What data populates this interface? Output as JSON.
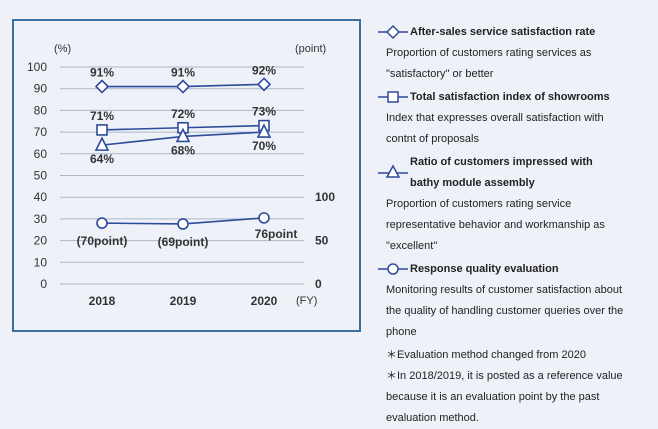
{
  "chart_data": {
    "type": "line",
    "x": [
      "2018",
      "2019",
      "2020"
    ],
    "x_unit": "(FY)",
    "left_axis_unit": "(%)",
    "right_axis_unit": "(point)",
    "yticks_left": [
      "100",
      "90",
      "80",
      "70",
      "60",
      "50",
      "40",
      "30",
      "20",
      "10",
      "0"
    ],
    "yticks_right": [
      "100",
      "50",
      "0"
    ],
    "ylim": [
      0,
      100
    ],
    "grid": true,
    "series": [
      {
        "name": "After-sales service satisfaction rate",
        "marker": "diamond",
        "axis": "left",
        "values": [
          91,
          91,
          92
        ],
        "labels": [
          "91%",
          "91%",
          "92%"
        ]
      },
      {
        "name": "Total satisfaction index of showrooms",
        "marker": "square",
        "axis": "left",
        "values": [
          71,
          72,
          73
        ],
        "labels": [
          "71%",
          "72%",
          "73%"
        ]
      },
      {
        "name": "Ratio of customers impressed with bathy module assembly",
        "marker": "triangle",
        "axis": "left",
        "values": [
          64,
          68,
          70
        ],
        "labels": [
          "64%",
          "68%",
          "70%"
        ]
      },
      {
        "name": "Response quality evaluation",
        "marker": "circle",
        "axis": "right",
        "values": [
          70,
          69,
          76
        ],
        "labels": [
          "(70point)",
          "(69point)",
          "76point"
        ]
      }
    ]
  },
  "legend": {
    "items": [
      {
        "title": "After-sales service satisfaction rate",
        "desc": [
          "Proportion of customers rating services as",
          "\"satisfactory\" or better"
        ]
      },
      {
        "title": "Total satisfaction index of showrooms",
        "desc": [
          "Index that expresses overall satisfaction with",
          "contnt of proposals"
        ]
      },
      {
        "title_lines": [
          "Ratio of customers impressed with",
          "bathy module assembly"
        ],
        "desc": [
          "Proportion of customers rating service",
          "representative behavior and workmanship as",
          "\"excellent\""
        ]
      },
      {
        "title": "Response quality evaluation",
        "desc": [
          "Monitoring results of customer satisfaction about",
          "the quality of handling customer queries over the",
          "phone"
        ]
      }
    ],
    "notes": [
      "＊Evaluation method changed from 2020",
      "＊In 2018/2019, it is posted as a reference value",
      "because it is an evaluation point by the past",
      "evaluation method."
    ]
  },
  "colors": {
    "line": "#2e4a9a",
    "grid": "#a9b7c6",
    "frame": "#3a6f9e",
    "text": "#333333"
  }
}
